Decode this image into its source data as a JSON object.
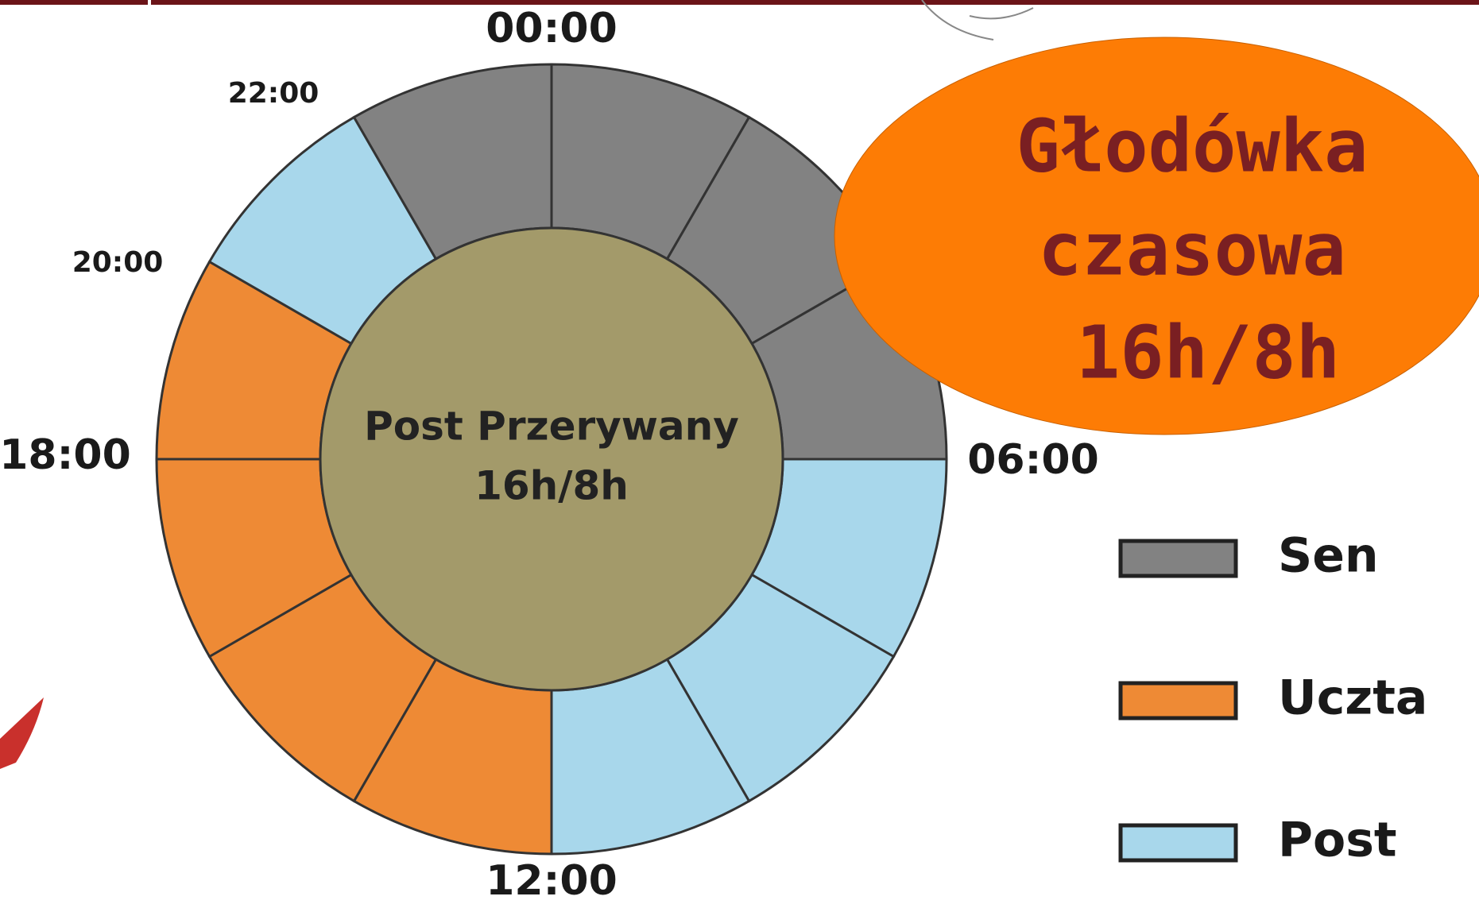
{
  "clock": {
    "labels": {
      "top": "00:00",
      "h22": "22:00",
      "h20": "20:00",
      "left": "18:00",
      "right": "06:00",
      "bottom": "12:00"
    },
    "center": {
      "line1": "Post Przerywany",
      "line2": "16h/8h"
    },
    "segments": [
      "Sen",
      "Sen",
      "Sen",
      "Post",
      "Post",
      "Post",
      "Uczta",
      "Uczta",
      "Uczta",
      "Uczta",
      "Post",
      "Sen"
    ]
  },
  "badge": {
    "line1": "Głodówka",
    "line2": "czasowa",
    "line3": "16h/8h"
  },
  "legend": [
    {
      "name": "Sen",
      "color": "#828282"
    },
    {
      "name": "Uczta",
      "color": "#ee8a35"
    },
    {
      "name": "Post",
      "color": "#a8d7eb"
    }
  ]
}
